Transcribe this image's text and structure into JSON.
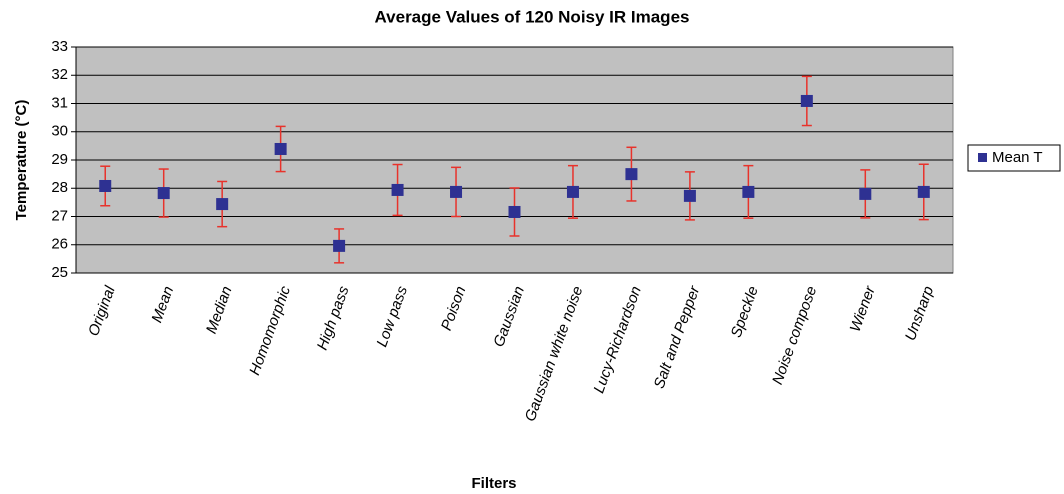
{
  "chart_data": {
    "type": "errorbar",
    "title": "Average Values of 120 Noisy IR Images",
    "xlabel": "Filters",
    "ylabel": "Temperature (°C)",
    "categories": [
      "Original",
      "Mean",
      "Median",
      "Homomorphic",
      "High pass",
      "Low pass",
      "Poison",
      "Gaussian",
      "Gaussian white noise",
      "Lucy-Richardson",
      "Salt and Pepper",
      "Speckle",
      "Noise compose",
      "Wiener",
      "Unsharp"
    ],
    "series": [
      {
        "name": "Mean T",
        "color": "#2e3192",
        "error_color": "#e8322b",
        "values": [
          28.08,
          27.83,
          27.44,
          29.39,
          25.96,
          27.94,
          27.87,
          27.16,
          27.87,
          28.5,
          27.73,
          27.87,
          31.09,
          27.8,
          27.87
        ],
        "errors": [
          0.7,
          0.85,
          0.8,
          0.8,
          0.6,
          0.9,
          0.87,
          0.85,
          0.93,
          0.95,
          0.85,
          0.93,
          0.87,
          0.85,
          0.98
        ]
      }
    ],
    "ylim": [
      25,
      33
    ],
    "yticks": [
      25,
      26,
      27,
      28,
      29,
      30,
      31,
      32,
      33
    ],
    "grid": true,
    "legend": "right"
  }
}
